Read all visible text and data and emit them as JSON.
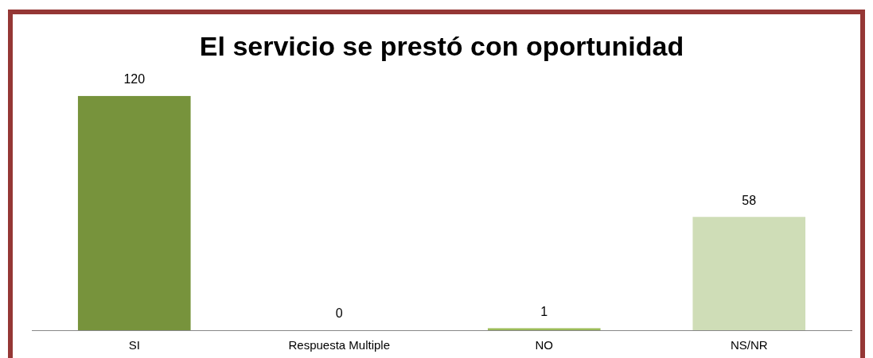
{
  "chart_data": {
    "type": "bar",
    "title": "El servicio se prestó con oportunidad",
    "categories": [
      "SI",
      "Respuesta Multiple",
      "NO",
      "NS/NR"
    ],
    "values": [
      120,
      0,
      1,
      58
    ],
    "colors": [
      "#77933c",
      "#9bbb59",
      "#9bbb59",
      "#cfddb7"
    ],
    "data_labels": true,
    "grid": false,
    "legend": false
  }
}
